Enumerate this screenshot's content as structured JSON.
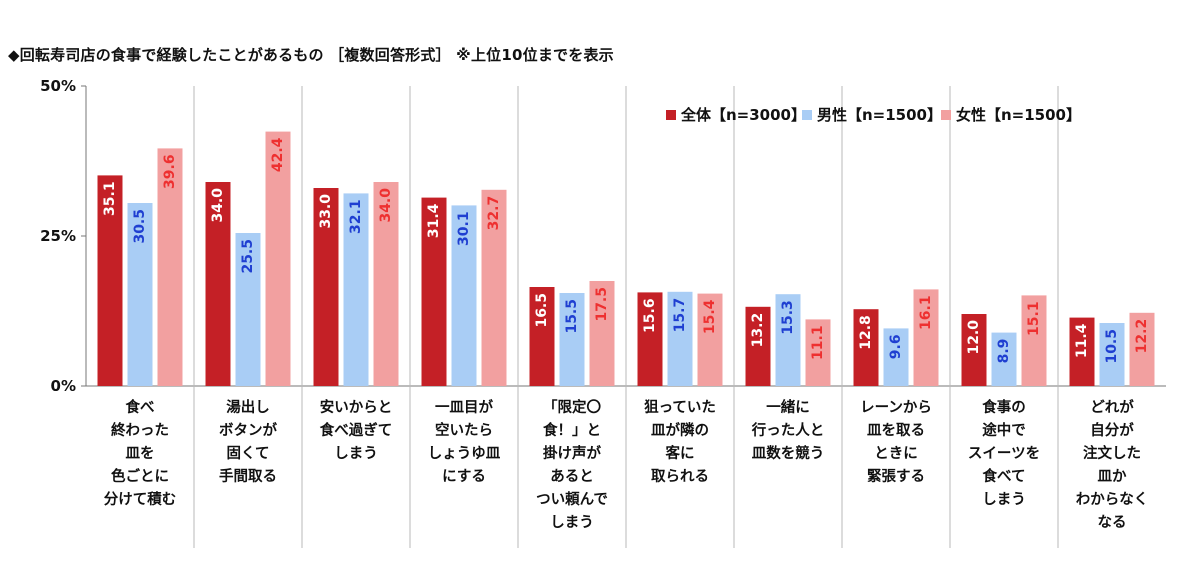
{
  "title": "◆回転寿司店の食事で経験したことがあるもの ［複数回答形式］ ※上位10位までを表示",
  "chart_data": {
    "type": "bar",
    "categories": [
      [
        "食べ",
        "終わった",
        "皿を",
        "色ごとに",
        "分けて積む"
      ],
      [
        "湯出し",
        "ボタンが",
        "固くて",
        "手間取る"
      ],
      [
        "安いからと",
        "食べ過ぎて",
        "しまう"
      ],
      [
        "一皿目が",
        "空いたら",
        "しょうゆ皿",
        "にする"
      ],
      [
        "「限定〇",
        "食！」と",
        "掛け声が",
        "あると",
        "つい頼んで",
        "しまう"
      ],
      [
        "狙っていた",
        "皿が隣の",
        "客に",
        "取られる"
      ],
      [
        "一緒に",
        "行った人と",
        "皿数を競う"
      ],
      [
        "レーンから",
        "皿を取る",
        "ときに",
        "緊張する"
      ],
      [
        "食事の",
        "途中で",
        "スイーツを",
        "食べて",
        "しまう"
      ],
      [
        "どれが",
        "自分が",
        "注文した",
        "皿か",
        "わからなく",
        "なる"
      ]
    ],
    "series": [
      {
        "name": "全体【n=3000】",
        "color": "#c42026",
        "label_color": "#ffffff",
        "values": [
          35.1,
          34.0,
          33.0,
          31.4,
          16.5,
          15.6,
          13.2,
          12.8,
          12.0,
          11.4
        ]
      },
      {
        "name": "男性【n=1500】",
        "color": "#a9cdf5",
        "label_color": "#1f3fd1",
        "values": [
          30.5,
          25.5,
          32.1,
          30.1,
          15.5,
          15.7,
          15.3,
          9.6,
          8.9,
          10.5
        ]
      },
      {
        "name": "女性【n=1500】",
        "color": "#f2a0a0",
        "label_color": "#ee3030",
        "values": [
          39.6,
          42.4,
          34.0,
          32.7,
          17.5,
          15.4,
          11.1,
          16.1,
          15.1,
          12.2
        ]
      }
    ],
    "y_ticks": [
      "0%",
      "25%",
      "50%"
    ],
    "ylim": [
      0,
      50
    ],
    "legend_position": "top-right",
    "data_labels": true,
    "grid": false
  }
}
